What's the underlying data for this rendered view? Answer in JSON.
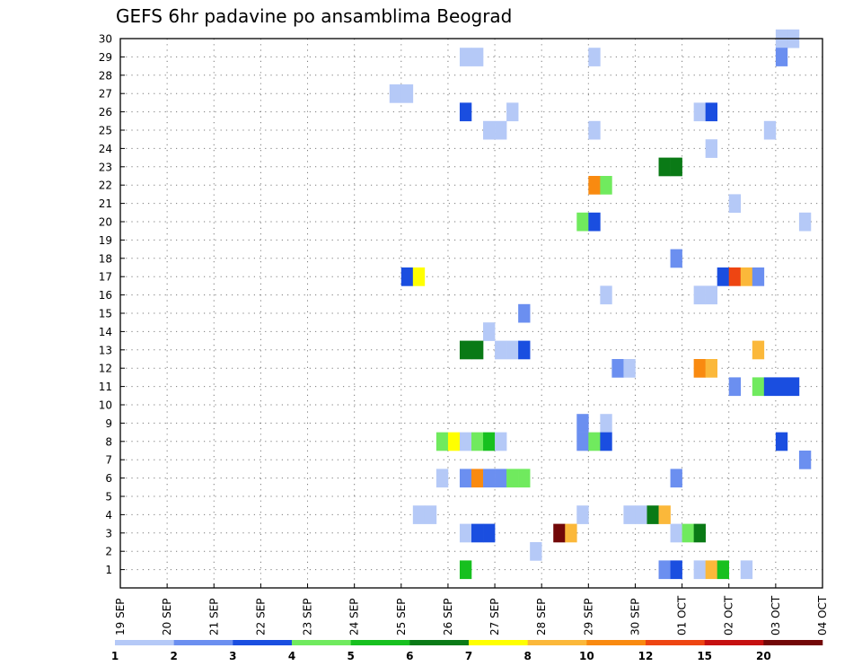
{
  "chart_data": {
    "type": "heatmap",
    "title": "GEFS 6hr padavine po ansamblima Beograd",
    "y_tick_labels": [
      "1",
      "2",
      "3",
      "4",
      "5",
      "6",
      "7",
      "8",
      "9",
      "10",
      "11",
      "12",
      "13",
      "14",
      "15",
      "16",
      "17",
      "18",
      "19",
      "20",
      "21",
      "22",
      "23",
      "24",
      "25",
      "26",
      "27",
      "28",
      "29",
      "30"
    ],
    "ylim": [
      0,
      30
    ],
    "x_tick_labels": [
      "19 SEP",
      "20 SEP",
      "21 SEP",
      "22 SEP",
      "23 SEP",
      "24 SEP",
      "25 SEP",
      "26 SEP",
      "27 SEP",
      "28 SEP",
      "29 SEP",
      "30 SEP",
      "01 OCT",
      "02 OCT",
      "03 OCT",
      "04 OCT"
    ],
    "x_range_days": [
      0,
      15
    ],
    "grid": "dotted",
    "colorbar": {
      "labels": [
        "1",
        "2",
        "3",
        "4",
        "5",
        "6",
        "7",
        "8",
        "10",
        "12",
        "15",
        "20"
      ],
      "colors": [
        "#b5c9f7",
        "#6b8ff0",
        "#1a4ee0",
        "#70ea5e",
        "#17c01f",
        "#0a7a16",
        "#ffff00",
        "#fbb83a",
        "#f98a10",
        "#ee4512",
        "#c61010",
        "#720808"
      ]
    },
    "cells_note": "each cell: [day offset from 19 SEP, member, color class 1-12]",
    "cells": [
      [
        14.0,
        30,
        1
      ],
      [
        14.25,
        30,
        1
      ],
      [
        7.25,
        29,
        1
      ],
      [
        7.5,
        29,
        1
      ],
      [
        10.0,
        29,
        1
      ],
      [
        14.0,
        29,
        2
      ],
      [
        5.75,
        27,
        1
      ],
      [
        6.0,
        27,
        1
      ],
      [
        7.25,
        26,
        3
      ],
      [
        8.25,
        26,
        1
      ],
      [
        12.25,
        26,
        1
      ],
      [
        12.5,
        26,
        3
      ],
      [
        7.75,
        25,
        1
      ],
      [
        8.0,
        25,
        1
      ],
      [
        10.0,
        25,
        1
      ],
      [
        13.75,
        25,
        1
      ],
      [
        12.5,
        24,
        1
      ],
      [
        11.5,
        23,
        6
      ],
      [
        11.75,
        23,
        6
      ],
      [
        10.0,
        22,
        9
      ],
      [
        10.25,
        22,
        4
      ],
      [
        13.0,
        21,
        1
      ],
      [
        9.75,
        20,
        4
      ],
      [
        10.0,
        20,
        3
      ],
      [
        14.5,
        20,
        1
      ],
      [
        11.75,
        18,
        2
      ],
      [
        6.0,
        17,
        3
      ],
      [
        6.25,
        17,
        7
      ],
      [
        12.75,
        17,
        3
      ],
      [
        13.0,
        17,
        10
      ],
      [
        13.25,
        17,
        8
      ],
      [
        13.5,
        17,
        2
      ],
      [
        10.25,
        16,
        1
      ],
      [
        12.25,
        16,
        1
      ],
      [
        12.5,
        16,
        1
      ],
      [
        8.5,
        15,
        2
      ],
      [
        7.75,
        14,
        1
      ],
      [
        7.25,
        13,
        6
      ],
      [
        7.5,
        13,
        6
      ],
      [
        8.0,
        13,
        1
      ],
      [
        8.25,
        13,
        1
      ],
      [
        8.5,
        13,
        3
      ],
      [
        13.5,
        13,
        8
      ],
      [
        10.5,
        12,
        2
      ],
      [
        10.75,
        12,
        1
      ],
      [
        12.25,
        12,
        9
      ],
      [
        12.5,
        12,
        8
      ],
      [
        13.0,
        11,
        2
      ],
      [
        13.5,
        11,
        4
      ],
      [
        13.75,
        11,
        3
      ],
      [
        14.0,
        11,
        3
      ],
      [
        14.25,
        11,
        3
      ],
      [
        9.75,
        9,
        2
      ],
      [
        10.25,
        9,
        1
      ],
      [
        6.75,
        8,
        4
      ],
      [
        7.0,
        8,
        7
      ],
      [
        7.25,
        8,
        1
      ],
      [
        7.5,
        8,
        4
      ],
      [
        7.75,
        8,
        5
      ],
      [
        8.0,
        8,
        1
      ],
      [
        9.75,
        8,
        2
      ],
      [
        10.0,
        8,
        4
      ],
      [
        10.25,
        8,
        3
      ],
      [
        14.0,
        8,
        3
      ],
      [
        14.5,
        7,
        2
      ],
      [
        6.75,
        6,
        1
      ],
      [
        7.25,
        6,
        2
      ],
      [
        7.5,
        6,
        9
      ],
      [
        7.75,
        6,
        2
      ],
      [
        8.0,
        6,
        2
      ],
      [
        8.25,
        6,
        4
      ],
      [
        8.5,
        6,
        4
      ],
      [
        11.75,
        6,
        2
      ],
      [
        6.25,
        4,
        1
      ],
      [
        6.5,
        4,
        1
      ],
      [
        9.75,
        4,
        1
      ],
      [
        10.75,
        4,
        1
      ],
      [
        11.0,
        4,
        1
      ],
      [
        11.25,
        4,
        6
      ],
      [
        11.5,
        4,
        8
      ],
      [
        7.25,
        3,
        1
      ],
      [
        7.5,
        3,
        3
      ],
      [
        7.75,
        3,
        3
      ],
      [
        9.25,
        3,
        12
      ],
      [
        9.5,
        3,
        8
      ],
      [
        11.75,
        3,
        1
      ],
      [
        12.0,
        3,
        4
      ],
      [
        12.25,
        3,
        6
      ],
      [
        8.75,
        2,
        1
      ],
      [
        7.25,
        1,
        5
      ],
      [
        11.5,
        1,
        2
      ],
      [
        11.75,
        1,
        3
      ],
      [
        12.25,
        1,
        1
      ],
      [
        12.5,
        1,
        8
      ],
      [
        12.75,
        1,
        5
      ],
      [
        13.25,
        1,
        1
      ]
    ]
  }
}
